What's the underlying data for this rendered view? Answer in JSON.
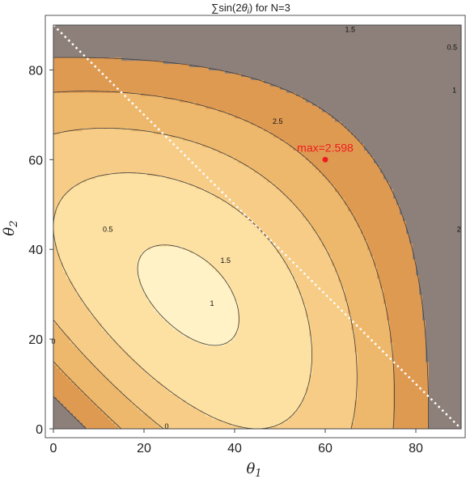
{
  "chart_data": {
    "type": "contour",
    "title_prefix": "∑sin(2",
    "title_theta": "θ",
    "title_sub": "i",
    "title_suffix": ") for N=3",
    "xlabel": "θ",
    "xlabel_sub": "1",
    "ylabel": "θ",
    "ylabel_sub": "2",
    "xlim": [
      0,
      90
    ],
    "ylim": [
      0,
      90
    ],
    "xticks": [
      0,
      20,
      40,
      60,
      80
    ],
    "yticks": [
      0,
      20,
      40,
      60,
      80
    ],
    "contour_levels": [
      0,
      0.5,
      1,
      1.5,
      2,
      2.5
    ],
    "contour_labels": [
      {
        "text": "0",
        "x": 25,
        "y": 0.5
      },
      {
        "text": "0",
        "x": 0,
        "y": 19.5
      },
      {
        "text": "0.5",
        "x": 12,
        "y": 44.5
      },
      {
        "text": "1",
        "x": 35,
        "y": 28
      },
      {
        "text": "1.5",
        "x": 38,
        "y": 37.5
      },
      {
        "text": "2",
        "x": 89.5,
        "y": 44.5
      },
      {
        "text": "2.5",
        "x": 49.5,
        "y": 68.5
      },
      {
        "text": "1.5",
        "x": 65.5,
        "y": 89
      },
      {
        "text": "0.5",
        "x": 88,
        "y": 85
      },
      {
        "text": "1",
        "x": 88.5,
        "y": 75.5
      }
    ],
    "max_point": {
      "x": 60,
      "y": 60,
      "label": "max=2.598"
    },
    "diagonal_line": {
      "from": [
        0,
        90
      ],
      "to": [
        90,
        0
      ],
      "style": "dotted"
    },
    "colors": {
      "bands": [
        "#4462a8",
        "#8d807a",
        "#df9a52",
        "#eeb86c",
        "#f7cc86",
        "#fde1a2",
        "#fff2c6"
      ],
      "max_point": "#ee1c1c",
      "diagonal": "#ffffff"
    }
  }
}
